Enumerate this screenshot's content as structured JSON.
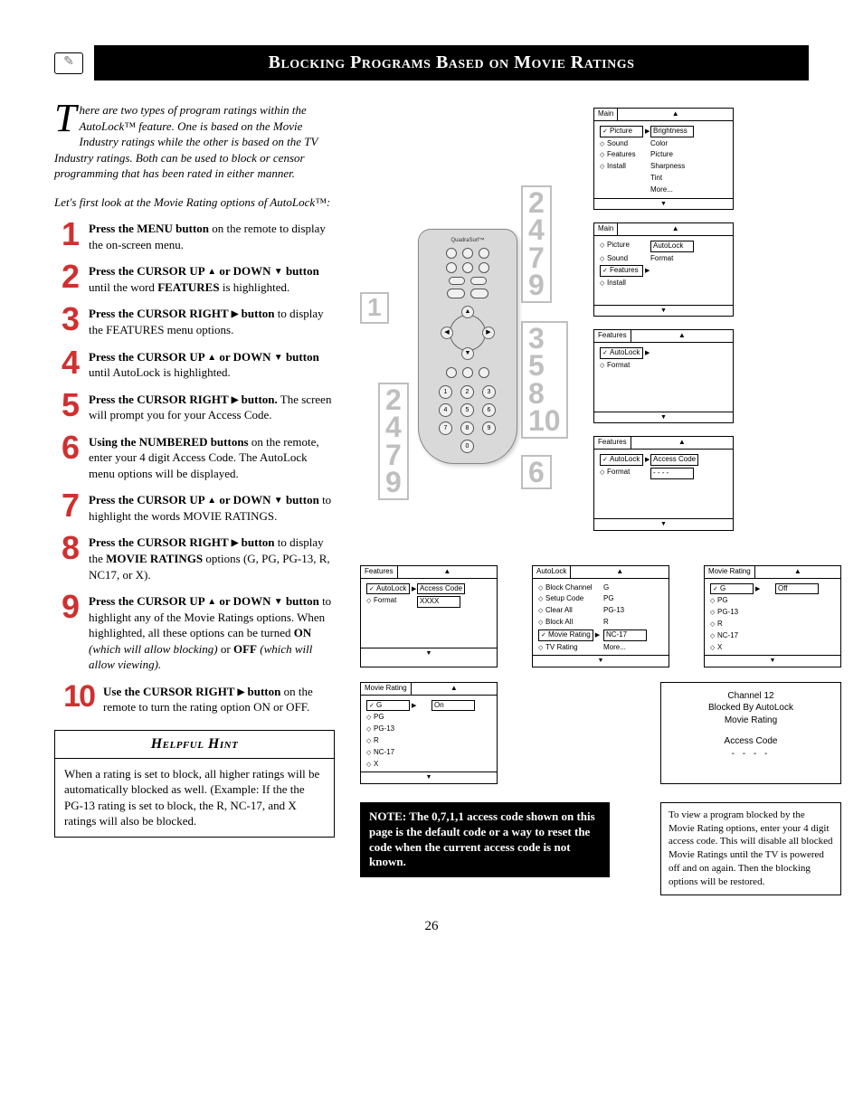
{
  "page": {
    "title": "Blocking Programs Based on Movie Ratings",
    "icon_glyph": "✎",
    "number": "26"
  },
  "intro": {
    "dropcap": "T",
    "text": "here are two types of program ratings within the AutoLock™ feature. One is based on the Movie Industry ratings while the other is based on the TV Industry ratings. Both can be used to block or censor programming that has been rated in either manner."
  },
  "lead_in": "Let's first look at the Movie Rating options of AutoLock™:",
  "steps": [
    {
      "n": "1",
      "html": "<b>Press the MENU button</b> on the remote to display the on-screen menu."
    },
    {
      "n": "2",
      "html": "<b>Press the CURSOR UP <span class='tri'>▲</span> or DOWN <span class='tri'>▼</span> button</b> until the word <b>FEATURES</b> is highlighted."
    },
    {
      "n": "3",
      "html": "<b>Press the CURSOR RIGHT <span class='tri'>▶</span> button</b> to display the FEATURES menu options."
    },
    {
      "n": "4",
      "html": "<b>Press the CURSOR UP <span class='tri'>▲</span> or DOWN <span class='tri'>▼</span> button</b> until AutoLock is highlighted."
    },
    {
      "n": "5",
      "html": "<b>Press the CURSOR RIGHT <span class='tri'>▶</span> button.</b> The screen will prompt you for your Access Code."
    },
    {
      "n": "6",
      "html": "<b>Using the NUMBERED buttons</b> on the remote, enter your 4 digit Access Code. The AutoLock menu options will be displayed."
    },
    {
      "n": "7",
      "html": "<b>Press the CURSOR UP <span class='tri'>▲</span> or DOWN <span class='tri'>▼</span> button</b> to highlight the words MOVIE RATINGS."
    },
    {
      "n": "8",
      "html": "<b>Press the CURSOR RIGHT <span class='tri'>▶</span> button</b> to display the <b>MOVIE RATINGS</b> options (G, PG, PG-13, R, NC17, or X)."
    },
    {
      "n": "9",
      "html": "<b>Press the CURSOR UP <span class='tri'>▲</span> or DOWN <span class='tri'>▼</span> button</b> to highlight any of the Movie Ratings options. When highlighted, all these options can be turned <b>ON</b> <i>(which will allow blocking)</i> or <b>OFF</b> <i>(which will allow viewing).</i>"
    },
    {
      "n": "10",
      "html": "<b>Use the CURSOR RIGHT <span class='tri'>▶</span> button</b> on the remote to turn the rating option ON or OFF."
    }
  ],
  "hint": {
    "title": "Helpful Hint",
    "body": "When a rating is set to block, all higher ratings will be automatically blocked as well. (Example: If the the PG-13 rating is set to block, the R, NC-17, and X ratings will also be blocked."
  },
  "callouts": {
    "left_single": "1",
    "right_top": [
      "2",
      "4",
      "7",
      "9"
    ],
    "right_mid": [
      "3",
      "5",
      "8",
      "10"
    ],
    "right_bot": [
      "6"
    ],
    "left_bot": [
      "2",
      "4",
      "7",
      "9"
    ]
  },
  "remote": {
    "brand": "QuadraSurf™",
    "numpad": [
      "1",
      "2",
      "3",
      "4",
      "5",
      "6",
      "7",
      "8",
      "9",
      "",
      "0",
      ""
    ]
  },
  "osd": {
    "main1": {
      "title": "Main",
      "left": [
        [
          "✓",
          "Picture"
        ],
        [
          "◇",
          "Sound"
        ],
        [
          "◇",
          "Features"
        ],
        [
          "◇",
          "Install"
        ]
      ],
      "right": [
        "Brightness",
        "Color",
        "Picture",
        "Sharpness",
        "Tint",
        "More..."
      ],
      "sel_right_idx": 0
    },
    "main2": {
      "title": "Main",
      "left": [
        [
          "◇",
          "Picture"
        ],
        [
          "◇",
          "Sound"
        ],
        [
          "✓",
          "Features"
        ],
        [
          "◇",
          "Install"
        ]
      ],
      "right": [
        "AutoLock",
        "Format"
      ]
    },
    "features1": {
      "title": "Features",
      "left": [
        [
          "✓",
          "AutoLock"
        ],
        [
          "◇",
          "Format"
        ]
      ],
      "right": []
    },
    "features2": {
      "title": "Features",
      "left": [
        [
          "✓",
          "AutoLock"
        ],
        [
          "◇",
          "Format"
        ]
      ],
      "right": [
        "Access Code",
        "- - - -"
      ]
    },
    "features3": {
      "title": "Features",
      "left": [
        [
          "✓",
          "AutoLock"
        ],
        [
          "◇",
          "Format"
        ]
      ],
      "right": [
        "Access Code",
        "XXXX"
      ]
    },
    "autolock": {
      "title": "AutoLock",
      "rows": [
        [
          "◇",
          "Block Channel",
          "G"
        ],
        [
          "◇",
          "Setup Code",
          "PG"
        ],
        [
          "◇",
          "Clear All",
          "PG-13"
        ],
        [
          "◇",
          "Block All",
          "R"
        ],
        [
          "✓",
          "Movie Rating",
          "NC-17"
        ],
        [
          "◇",
          "TV Rating",
          "More..."
        ]
      ]
    },
    "movierating_off": {
      "title": "Movie Rating",
      "rows": [
        [
          "✓",
          "G",
          "Off"
        ],
        [
          "◇",
          "PG",
          ""
        ],
        [
          "◇",
          "PG-13",
          ""
        ],
        [
          "◇",
          "R",
          ""
        ],
        [
          "◇",
          "NC-17",
          ""
        ],
        [
          "◇",
          "X",
          ""
        ]
      ]
    },
    "movierating_on": {
      "title": "Movie Rating",
      "rows": [
        [
          "✓",
          "G",
          "On"
        ],
        [
          "◇",
          "PG",
          ""
        ],
        [
          "◇",
          "PG-13",
          ""
        ],
        [
          "◇",
          "R",
          ""
        ],
        [
          "◇",
          "NC-17",
          ""
        ],
        [
          "◇",
          "X",
          ""
        ]
      ]
    },
    "blocked": {
      "line1": "Channel 12",
      "line2": "Blocked By AutoLock",
      "line3": "Movie Rating",
      "line4": "Access Code",
      "dashes": "- - - -"
    }
  },
  "note": "NOTE: The 0,7,1,1 access code shown on this page is the default code or a way to reset the code when the current access code is not known.",
  "view_note": "To view a program blocked by the Movie Rating options, enter your 4 digit access code. This will disable all blocked Movie Ratings until the TV is powered off and on again. Then the blocking options will be restored."
}
